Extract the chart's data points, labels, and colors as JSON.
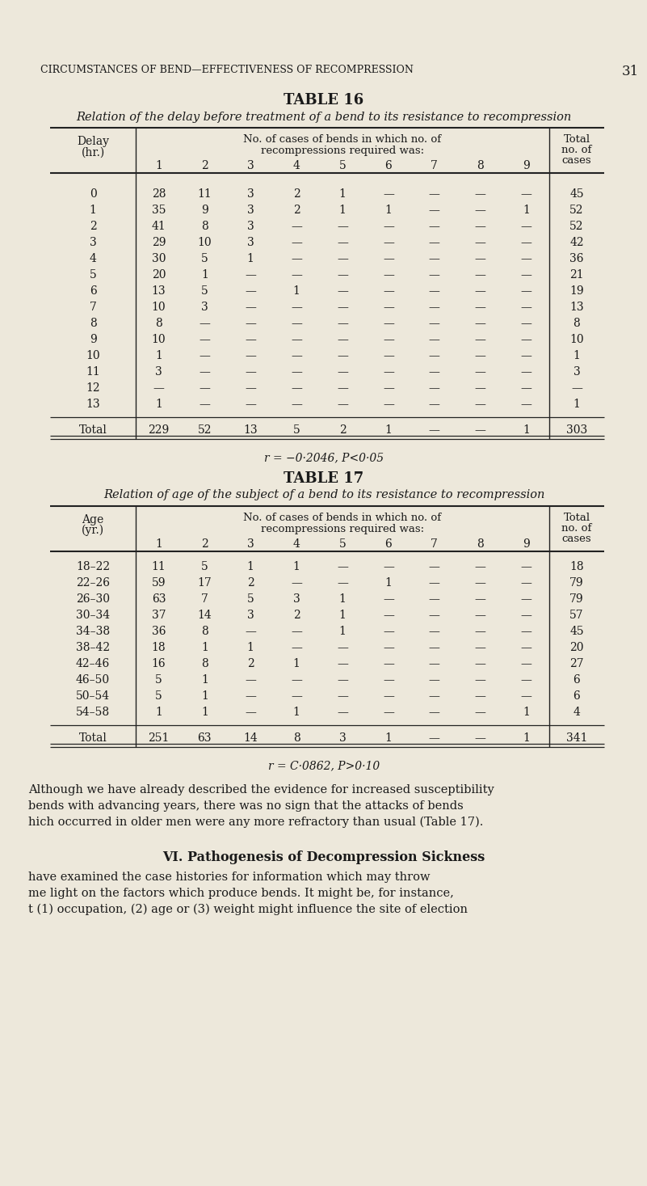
{
  "bg_color": "#ede8db",
  "text_color": "#1a1a1a",
  "page_header": "CIRCUMSTANCES OF BEND—EFFECTIVENESS OF RECOMPRESSION",
  "page_number": "31",
  "table16": {
    "title": "TABLE 16",
    "subtitle": "Relation of the delay before treatment of a bend to its resistance to recompression",
    "col_header_line1": "No. of cases of bends in which no. of",
    "col_header_line2": "recompressions required was:",
    "col_header_row": [
      "1",
      "2",
      "3",
      "4",
      "5",
      "6",
      "7",
      "8",
      "9"
    ],
    "row_header_label1": "Delay",
    "row_header_label2": "(hr.)",
    "total_col_label": [
      "Total",
      "no. of",
      "cases"
    ],
    "rows": [
      {
        "label": "0",
        "vals": [
          "28",
          "11",
          "3",
          "2",
          "1",
          "—",
          "—",
          "—",
          "—"
        ],
        "total": "45"
      },
      {
        "label": "1",
        "vals": [
          "35",
          "9",
          "3",
          "2",
          "1",
          "1",
          "—",
          "—",
          "1"
        ],
        "total": "52"
      },
      {
        "label": "2",
        "vals": [
          "41",
          "8",
          "3",
          "—",
          "—",
          "—",
          "—",
          "—",
          "—"
        ],
        "total": "52"
      },
      {
        "label": "3",
        "vals": [
          "29",
          "10",
          "3",
          "—",
          "—",
          "—",
          "—",
          "—",
          "—"
        ],
        "total": "42"
      },
      {
        "label": "4",
        "vals": [
          "30",
          "5",
          "1",
          "—",
          "—",
          "—",
          "—",
          "—",
          "—"
        ],
        "total": "36"
      },
      {
        "label": "5",
        "vals": [
          "20",
          "1",
          "—",
          "—",
          "—",
          "—",
          "—",
          "—",
          "—"
        ],
        "total": "21"
      },
      {
        "label": "6",
        "vals": [
          "13",
          "5",
          "—",
          "1",
          "—",
          "—",
          "—",
          "—",
          "—"
        ],
        "total": "19"
      },
      {
        "label": "7",
        "vals": [
          "10",
          "3",
          "—",
          "—",
          "—",
          "—",
          "—",
          "—",
          "—"
        ],
        "total": "13"
      },
      {
        "label": "8",
        "vals": [
          "8",
          "—",
          "—",
          "—",
          "—",
          "—",
          "—",
          "—",
          "—"
        ],
        "total": "8"
      },
      {
        "label": "9",
        "vals": [
          "10",
          "—",
          "—",
          "—",
          "—",
          "—",
          "—",
          "—",
          "—"
        ],
        "total": "10"
      },
      {
        "label": "10",
        "vals": [
          "1",
          "—",
          "—",
          "—",
          "—",
          "—",
          "—",
          "—",
          "—"
        ],
        "total": "1"
      },
      {
        "label": "11",
        "vals": [
          "3",
          "—",
          "—",
          "—",
          "—",
          "—",
          "—",
          "—",
          "—"
        ],
        "total": "3"
      },
      {
        "label": "12",
        "vals": [
          "—",
          "—",
          "—",
          "—",
          "—",
          "—",
          "—",
          "—",
          "—"
        ],
        "total": "—"
      },
      {
        "label": "13",
        "vals": [
          "1",
          "—",
          "—",
          "—",
          "—",
          "—",
          "—",
          "—",
          "—"
        ],
        "total": "1"
      }
    ],
    "total_row": {
      "label": "Total",
      "vals": [
        "229",
        "52",
        "13",
        "5",
        "2",
        "1",
        "—",
        "—",
        "1"
      ],
      "total": "303"
    },
    "stat": "r = −0·2046, P<0·05"
  },
  "table17": {
    "title": "TABLE 17",
    "subtitle": "Relation of age of the subject of a bend to its resistance to recompression",
    "col_header_line1": "No. of cases of bends in which no. of",
    "col_header_line2": "recompressions required was:",
    "col_header_row": [
      "1",
      "2",
      "3",
      "4",
      "5",
      "6",
      "7",
      "8",
      "9"
    ],
    "row_header_label1": "Age",
    "row_header_label2": "(yr.)",
    "total_col_label": [
      "Total",
      "no. of",
      "cases"
    ],
    "rows": [
      {
        "label": "18–22",
        "vals": [
          "11",
          "5",
          "1",
          "1",
          "—",
          "—",
          "—",
          "—",
          "—"
        ],
        "total": "18"
      },
      {
        "label": "22–26",
        "vals": [
          "59",
          "17",
          "2",
          "—",
          "—",
          "1",
          "—",
          "—",
          "—"
        ],
        "total": "79"
      },
      {
        "label": "26–30",
        "vals": [
          "63",
          "7",
          "5",
          "3",
          "1",
          "—",
          "—",
          "—",
          "—"
        ],
        "total": "79"
      },
      {
        "label": "30–34",
        "vals": [
          "37",
          "14",
          "3",
          "2",
          "1",
          "—",
          "—",
          "—",
          "—"
        ],
        "total": "57"
      },
      {
        "label": "34–38",
        "vals": [
          "36",
          "8",
          "—",
          "—",
          "1",
          "—",
          "—",
          "—",
          "—"
        ],
        "total": "45"
      },
      {
        "label": "38–42",
        "vals": [
          "18",
          "1",
          "1",
          "—",
          "—",
          "—",
          "—",
          "—",
          "—"
        ],
        "total": "20"
      },
      {
        "label": "42–46",
        "vals": [
          "16",
          "8",
          "2",
          "1",
          "—",
          "—",
          "—",
          "—",
          "—"
        ],
        "total": "27"
      },
      {
        "label": "46–50",
        "vals": [
          "5",
          "1",
          "—",
          "—",
          "—",
          "—",
          "—",
          "—",
          "—"
        ],
        "total": "6"
      },
      {
        "label": "50–54",
        "vals": [
          "5",
          "1",
          "—",
          "—",
          "—",
          "—",
          "—",
          "—",
          "—"
        ],
        "total": "6"
      },
      {
        "label": "54–58",
        "vals": [
          "1",
          "1",
          "—",
          "1",
          "—",
          "—",
          "—",
          "—",
          "1"
        ],
        "total": "4"
      }
    ],
    "total_row": {
      "label": "Total",
      "vals": [
        "251",
        "63",
        "14",
        "8",
        "3",
        "1",
        "—",
        "—",
        "1"
      ],
      "total": "341"
    },
    "stat": "r = C·0862, P>0·10"
  },
  "paragraph1_lines": [
    "Although we have already described the evidence for increased susceptibility",
    "bends with advancing years, there was no sign that the attacks of bends",
    "hich occurred in older men were any more refractory than usual (Table 17)."
  ],
  "section_heading": "VI. Pathogenesis of Decompression Sickness",
  "paragraph2_lines": [
    "have examined the case histories for information which may throw",
    "me light on the factors which produce bends. It might be, for instance,",
    "t (1) occupation, (2) age or (3) weight might influence the site of election"
  ]
}
